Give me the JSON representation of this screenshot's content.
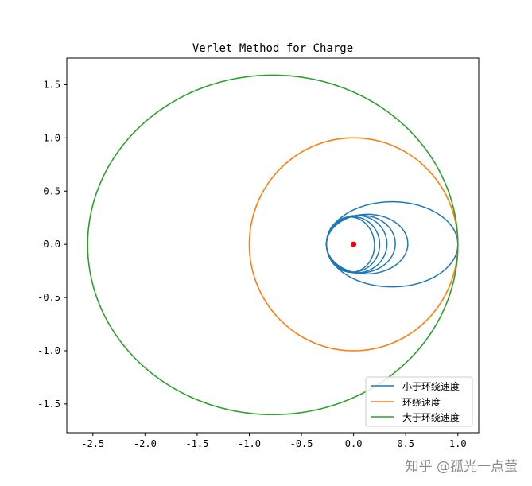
{
  "chart_data": {
    "type": "line",
    "title": "Verlet Method for Charge",
    "xlabel": "",
    "ylabel": "",
    "xlim": [
      -2.75,
      1.2
    ],
    "ylim": [
      -1.77,
      1.75
    ],
    "xticks": [
      "-2.5",
      "-2.0",
      "-1.5",
      "-1.0",
      "-0.5",
      "0.0",
      "0.5",
      "1.0"
    ],
    "xtick_values": [
      -2.5,
      -2.0,
      -1.5,
      -1.0,
      -0.5,
      0.0,
      0.5,
      1.0
    ],
    "yticks": [
      "1.5",
      "1.0",
      "0.5",
      "0.0",
      "-0.5",
      "-1.0",
      "-1.5"
    ],
    "ytick_values": [
      1.5,
      1.0,
      0.5,
      0.0,
      -0.5,
      -1.0,
      -1.5
    ],
    "grid": false,
    "legend_position": "lower-right",
    "center_point": {
      "x": 0.0,
      "y": 0.0,
      "color": "#ff0000"
    },
    "series": [
      {
        "name": "小于环绕速度",
        "color": "#1f77b4",
        "description_kind": "precessing-ellipses",
        "orbits": [
          {
            "x_min": -0.26,
            "x_max": 1.0,
            "y_half": 0.4
          },
          {
            "x_min": -0.26,
            "x_max": 0.52,
            "y_half": 0.28
          },
          {
            "x_min": -0.26,
            "x_max": 0.4,
            "y_half": 0.27
          },
          {
            "x_min": -0.26,
            "x_max": 0.32,
            "y_half": 0.27
          },
          {
            "x_min": -0.26,
            "x_max": 0.25,
            "y_half": 0.26
          },
          {
            "x_min": -0.26,
            "x_max": 0.2,
            "y_half": 0.26
          }
        ]
      },
      {
        "name": "环绕速度",
        "color": "#ff7f0e",
        "orbit": {
          "x_min": -1.0,
          "x_max": 1.0,
          "y_min": -1.0,
          "y_max": 1.0
        }
      },
      {
        "name": "大于环绕速度",
        "color": "#2ca02c",
        "orbit": {
          "x_min": -2.55,
          "x_max": 1.0,
          "y_min": -1.6,
          "y_max": 1.59
        },
        "end_point": {
          "x": -1.1,
          "y": 1.56
        }
      }
    ]
  },
  "watermark": "知乎 @孤光一点萤"
}
